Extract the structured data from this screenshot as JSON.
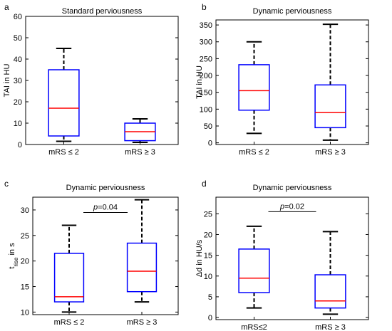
{
  "colors": {
    "box": "#0000ff",
    "median": "#ff0000",
    "whisker": "#000000",
    "frame": "#000000"
  },
  "chart_data": [
    {
      "type": "box",
      "panel": "a",
      "title": "Standard perviousness",
      "ylabel": "TAI in HU",
      "ylabel_sub": "",
      "ylabel_tail": "",
      "ylim": [
        0,
        60
      ],
      "yticks": [
        0,
        10,
        20,
        30,
        40,
        50,
        60
      ],
      "categories": [
        "mRS ≤ 2",
        "mRS ≥ 3"
      ],
      "boxes": [
        {
          "min": 1.5,
          "q1": 4,
          "median": 17,
          "q3": 35,
          "max": 45
        },
        {
          "min": 1,
          "q1": 1.8,
          "median": 6,
          "q3": 10,
          "max": 12
        }
      ],
      "significance": null
    },
    {
      "type": "box",
      "panel": "b",
      "title": "Dynamic perviousness",
      "ylabel": "TAI in HU",
      "ylabel_sub": "",
      "ylabel_tail": "",
      "ylim": [
        -5,
        365
      ],
      "yticks": [
        0,
        50,
        100,
        150,
        200,
        250,
        300,
        350
      ],
      "categories": [
        "mRS ≤ 2",
        "mRS ≥ 3"
      ],
      "boxes": [
        {
          "min": 28,
          "q1": 97,
          "median": 155,
          "q3": 232,
          "max": 300
        },
        {
          "min": 8,
          "q1": 45,
          "median": 90,
          "q3": 172,
          "max": 352
        }
      ],
      "significance": null
    },
    {
      "type": "box",
      "panel": "c",
      "title": "Dynamic perviousness",
      "ylabel": "t",
      "ylabel_sub": "rise",
      "ylabel_tail": " in s",
      "ylim": [
        9.5,
        32.5
      ],
      "yticks": [
        10,
        15,
        20,
        25,
        30
      ],
      "categories": [
        "mRS ≤ 2",
        "mRS ≥ 3"
      ],
      "boxes": [
        {
          "min": 10,
          "q1": 12,
          "median": 13,
          "q3": 21.5,
          "max": 27
        },
        {
          "min": 12,
          "q1": 14,
          "median": 18,
          "q3": 23.5,
          "max": 32
        }
      ],
      "significance": {
        "p_label": "p",
        "p_value": "=0.04",
        "level": 29.5
      }
    },
    {
      "type": "box",
      "panel": "d",
      "title": "Dynamic perviousness",
      "ylabel": "Δd in HU/s",
      "ylabel_sub": "",
      "ylabel_tail": "",
      "ylim": [
        -0.5,
        29
      ],
      "yticks": [
        0,
        5,
        10,
        15,
        20,
        25
      ],
      "categories": [
        "mRS≤2",
        "mRS ≥ 3"
      ],
      "boxes": [
        {
          "min": 2.3,
          "q1": 6,
          "median": 9.5,
          "q3": 16.5,
          "max": 22
        },
        {
          "min": 0.8,
          "q1": 2.3,
          "median": 4,
          "q3": 10.3,
          "max": 20.7
        }
      ],
      "significance": {
        "p_label": "p",
        "p_value": "=0.02",
        "level": 25.5
      }
    }
  ]
}
